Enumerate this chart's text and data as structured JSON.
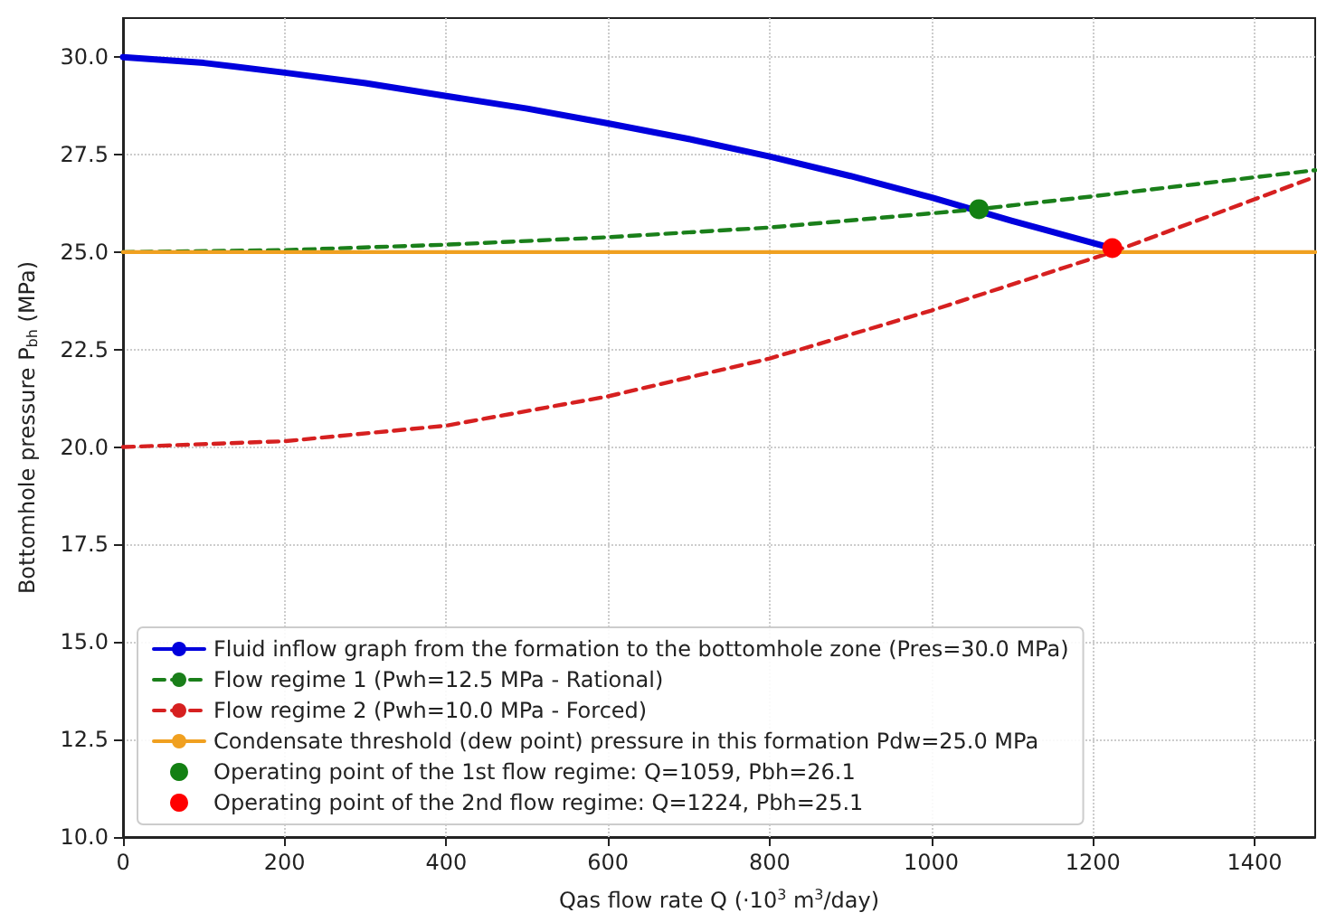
{
  "chart_data": {
    "type": "line",
    "xlabel": "Qas flow rate Q (·10$^{3}$ m$^{3}$/day)",
    "ylabel": "Bottomhole pressure P$_{bh}$ (MPa)",
    "xlim": [
      0,
      1475
    ],
    "xticks": [
      0,
      200,
      400,
      600,
      800,
      1000,
      1200,
      1400
    ],
    "ylim": [
      10,
      31
    ],
    "yticks": [
      {
        "value": 10,
        "label": "10.0"
      },
      12.5,
      {
        "value": 15,
        "label": "15.0"
      },
      17.5,
      {
        "value": 20,
        "label": "20.0"
      },
      22.5,
      {
        "value": 25,
        "label": "25.0"
      },
      27.5,
      {
        "value": 30,
        "label": "30.0"
      }
    ],
    "grid": true,
    "legend": "bottom left",
    "series": [
      {
        "name": "Fluid inflow graph from the formation to the bottomhole zone (Pres=30.0 MPa)",
        "color": "#0000dd",
        "line_style": "solid",
        "marker": "none",
        "x": [
          0,
          100,
          200,
          300,
          400,
          500,
          600,
          700,
          800,
          900,
          1000,
          1100,
          1224
        ],
        "values": [
          30,
          29.85,
          29.6,
          29.33,
          29.0,
          28.68,
          28.3,
          27.9,
          27.45,
          26.95,
          26.4,
          25.8,
          25.1
        ]
      },
      {
        "name": "Flow regime 1 (Pwh=12.5 MPa - Rational)",
        "color": "#1a7f1a",
        "line_style": "dashed",
        "marker": "none",
        "x": [
          0,
          200,
          400,
          600,
          800,
          1059,
          1200,
          1475
        ],
        "values": [
          25,
          25.05,
          25.19,
          25.38,
          25.63,
          26.1,
          26.43,
          27.1
        ]
      },
      {
        "name": "Flow regime 2 (Pwh=10.0 MPa - Forced)",
        "color": "#d62020",
        "line_style": "dashed",
        "marker": "none",
        "x": [
          0,
          200,
          400,
          600,
          800,
          1000,
          1224,
          1475
        ],
        "values": [
          20,
          20.15,
          20.55,
          21.3,
          22.27,
          23.5,
          25.0,
          26.93
        ]
      },
      {
        "name": "Condensate threshold (dew point) pressure in this formation Pdw=25.0 MPa",
        "color": "#f0a020",
        "line_style": "solid",
        "marker": "none",
        "x": [
          0,
          1475
        ],
        "values": [
          25,
          25
        ]
      },
      {
        "name": "Operating point of the 1st flow regime: Q=1059, Pbh=26.1",
        "type": "scatter",
        "color": "#138013",
        "marker": "circle",
        "x": [
          1059
        ],
        "values": [
          26.1
        ]
      },
      {
        "name": "Operating point of the 2nd flow regime: Q=1224, Pbh=25.1",
        "type": "scatter",
        "color": "#ff0000",
        "marker": "circle",
        "x": [
          1224
        ],
        "values": [
          25.1
        ]
      }
    ]
  }
}
